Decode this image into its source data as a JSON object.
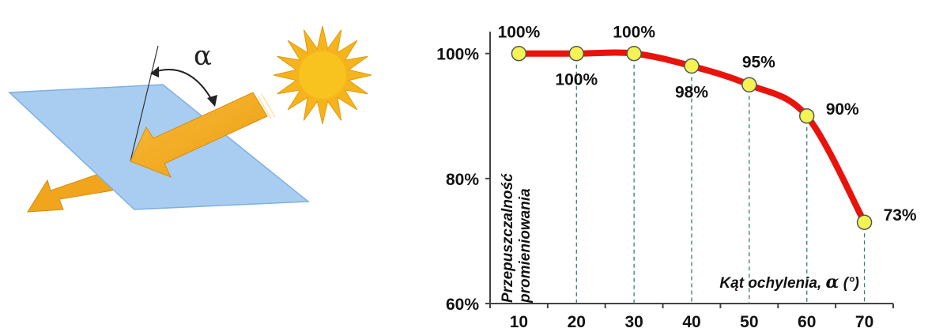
{
  "illustration": {
    "angle_symbol": "α",
    "icons": [
      "panel-icon",
      "sun-icon",
      "light-beam-arrow-icon",
      "transmitted-beam-arrow-icon"
    ],
    "colors": {
      "panel": "#a9cdf0",
      "beam": "#f4a71f",
      "sun": "#f5b41c"
    }
  },
  "chart_data": {
    "type": "line",
    "x": [
      10,
      20,
      30,
      40,
      50,
      60,
      70
    ],
    "series": [
      {
        "values": [
          100,
          100,
          100,
          98,
          95,
          90,
          73
        ],
        "color": "#e8140c",
        "marker_color": "#f3f354"
      }
    ],
    "data_labels": [
      "100%",
      "100%",
      "100%",
      "98%",
      "95%",
      "90%",
      "73%"
    ],
    "x_ticks": [
      "10",
      "20",
      "30",
      "40",
      "50",
      "60",
      "70"
    ],
    "y_ticks": [
      {
        "value": 60,
        "label": "60%"
      },
      {
        "value": 80,
        "label": "80%"
      },
      {
        "value": 100,
        "label": "100%"
      }
    ],
    "ylabel_line1": "Przepuszczalność",
    "ylabel_line2": "promieniowania",
    "xlabel": "Kąt ochylenia, ",
    "xlabel_symbol": "α",
    "xlabel_unit": " (°)",
    "xlim": [
      5,
      75
    ],
    "ylim": [
      60,
      103
    ],
    "grid": false,
    "drop_lines": true
  }
}
